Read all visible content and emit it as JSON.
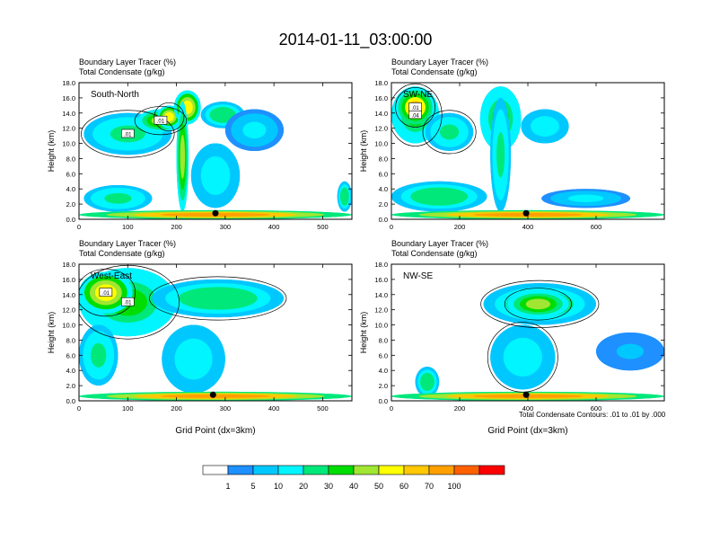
{
  "figure": {
    "title": "2014-01-11_03:00:00",
    "footnote": "Total Condensate Contours: .01 to .01 by .000"
  },
  "chart_data": [
    {
      "type": "heatmap",
      "panel": "South-North",
      "title_line1": "Boundary Layer Tracer   (%)",
      "title_line2": "Total Condensate   (g/kg)",
      "xlabel": "",
      "ylabel": "Height (km)",
      "xlim": [
        0,
        560
      ],
      "ylim": [
        0,
        18
      ],
      "xticks": [
        0,
        100,
        200,
        300,
        400,
        500
      ],
      "yticks": [
        "0.0",
        "2.0",
        "4.0",
        "6.0",
        "8.0",
        "10.0",
        "12.0",
        "14.0",
        "16.0",
        "18.0"
      ],
      "contour_labels": [
        ".01",
        ".01"
      ],
      "marker_x": 280,
      "blobs": [
        {
          "x": [
            10,
            190
          ],
          "y": [
            8.5,
            14.0
          ],
          "v": 20
        },
        {
          "x": [
            120,
            215
          ],
          "y": [
            11.5,
            14.5
          ],
          "v": 40
        },
        {
          "x": [
            160,
            210
          ],
          "y": [
            12.0,
            15.0
          ],
          "v": 55
        },
        {
          "x": [
            195,
            250
          ],
          "y": [
            12.5,
            17.0
          ],
          "v": 50
        },
        {
          "x": [
            200,
            225
          ],
          "y": [
            1.0,
            15.5
          ],
          "v": 45
        },
        {
          "x": [
            250,
            340
          ],
          "y": [
            12.0,
            15.5
          ],
          "v": 25
        },
        {
          "x": [
            300,
            420
          ],
          "y": [
            9.0,
            14.5
          ],
          "v": 10
        },
        {
          "x": [
            230,
            330
          ],
          "y": [
            1.5,
            10.0
          ],
          "v": 15
        },
        {
          "x": [
            10,
            150
          ],
          "y": [
            1.0,
            4.5
          ],
          "v": 20
        },
        {
          "x": [
            0,
            560
          ],
          "y": [
            0.0,
            1.2
          ],
          "v": 75
        },
        {
          "x": [
            530,
            560
          ],
          "y": [
            1.0,
            5.0
          ],
          "v": 25
        }
      ]
    },
    {
      "type": "heatmap",
      "panel": "SW-NE",
      "title_line1": "Boundary Layer Tracer   (%)",
      "title_line2": "Total Condensate   (g/kg)",
      "xlabel": "",
      "ylabel": "Height (km)",
      "xlim": [
        0,
        800
      ],
      "ylim": [
        0,
        18
      ],
      "xticks": [
        0,
        200,
        400,
        600
      ],
      "yticks": [
        "0.0",
        "2.0",
        "4.0",
        "6.0",
        "8.0",
        "10.0",
        "12.0",
        "14.0",
        "16.0",
        "18.0"
      ],
      "contour_labels": [
        ".04",
        ".01"
      ],
      "marker_x": 395,
      "blobs": [
        {
          "x": [
            0,
            140
          ],
          "y": [
            10.0,
            17.5
          ],
          "v": 30
        },
        {
          "x": [
            20,
            120
          ],
          "y": [
            12.5,
            17.0
          ],
          "v": 60
        },
        {
          "x": [
            100,
            240
          ],
          "y": [
            9.0,
            14.0
          ],
          "v": 20
        },
        {
          "x": [
            260,
            380
          ],
          "y": [
            9.0,
            17.5
          ],
          "v": 30
        },
        {
          "x": [
            290,
            350
          ],
          "y": [
            1.0,
            16.0
          ],
          "v": 20
        },
        {
          "x": [
            380,
            520
          ],
          "y": [
            10.0,
            14.5
          ],
          "v": 15
        },
        {
          "x": [
            0,
            280
          ],
          "y": [
            1.0,
            5.0
          ],
          "v": 25
        },
        {
          "x": [
            0,
            800
          ],
          "y": [
            0.0,
            1.2
          ],
          "v": 75
        },
        {
          "x": [
            440,
            700
          ],
          "y": [
            1.5,
            4.0
          ],
          "v": 10
        }
      ]
    },
    {
      "type": "heatmap",
      "panel": "West-East",
      "title_line1": "Boundary Layer Tracer   (%)",
      "title_line2": "Total Condensate   (g/kg)",
      "xlabel": "Grid Point (dx=3km)",
      "ylabel": "Height (km)",
      "xlim": [
        0,
        560
      ],
      "ylim": [
        0,
        18
      ],
      "xticks": [
        0,
        100,
        200,
        300,
        400,
        500
      ],
      "yticks": [
        "0.0",
        "2.0",
        "4.0",
        "6.0",
        "8.0",
        "10.0",
        "12.0",
        "14.0",
        "16.0",
        "18.0"
      ],
      "contour_labels": [
        ".01",
        ".01"
      ],
      "marker_x": 275,
      "blobs": [
        {
          "x": [
            0,
            200
          ],
          "y": [
            8.5,
            17.5
          ],
          "v": 30
        },
        {
          "x": [
            0,
            110
          ],
          "y": [
            11.5,
            17.0
          ],
          "v": 55
        },
        {
          "x": [
            150,
            420
          ],
          "y": [
            11.0,
            16.0
          ],
          "v": 25
        },
        {
          "x": [
            0,
            80
          ],
          "y": [
            2.0,
            10.0
          ],
          "v": 20
        },
        {
          "x": [
            170,
            300
          ],
          "y": [
            1.0,
            10.0
          ],
          "v": 15
        },
        {
          "x": [
            0,
            560
          ],
          "y": [
            0.0,
            1.2
          ],
          "v": 75
        }
      ]
    },
    {
      "type": "heatmap",
      "panel": "NW-SE",
      "title_line1": "Boundary Layer Tracer   (%)",
      "title_line2": "Total Condensate   (g/kg)",
      "xlabel": "Grid Point (dx=3km)",
      "ylabel": "Height (km)",
      "xlim": [
        0,
        800
      ],
      "ylim": [
        0,
        18
      ],
      "xticks": [
        0,
        200,
        400,
        600
      ],
      "yticks": [
        "0.0",
        "2.0",
        "4.0",
        "6.0",
        "8.0",
        "10.0",
        "12.0",
        "14.0",
        "16.0",
        "18.0"
      ],
      "contour_labels": [],
      "marker_x": 395,
      "blobs": [
        {
          "x": [
            270,
            600
          ],
          "y": [
            10.0,
            15.5
          ],
          "v": 25
        },
        {
          "x": [
            340,
            520
          ],
          "y": [
            11.0,
            14.5
          ],
          "v": 40
        },
        {
          "x": [
            290,
            480
          ],
          "y": [
            1.5,
            10.0
          ],
          "v": 15
        },
        {
          "x": [
            70,
            140
          ],
          "y": [
            0.5,
            4.5
          ],
          "v": 25
        },
        {
          "x": [
            0,
            800
          ],
          "y": [
            0.0,
            1.2
          ],
          "v": 75
        },
        {
          "x": [
            600,
            800
          ],
          "y": [
            4.0,
            9.0
          ],
          "v": 5
        }
      ]
    }
  ],
  "colorbar": {
    "labels": [
      "1",
      "5",
      "10",
      "20",
      "30",
      "40",
      "50",
      "60",
      "70",
      "100"
    ],
    "colors": [
      "#ffffff",
      "#1e90ff",
      "#00c8ff",
      "#00f5ff",
      "#00e87a",
      "#00dd00",
      "#a0e632",
      "#ffff00",
      "#ffc800",
      "#ffa000",
      "#ff6000",
      "#ff0000"
    ]
  }
}
